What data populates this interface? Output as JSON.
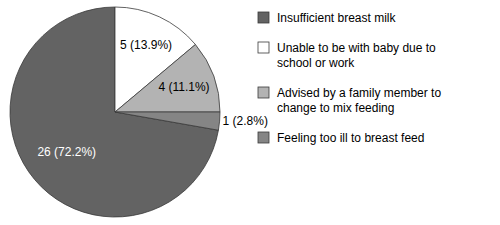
{
  "chart_data": {
    "type": "pie",
    "categories": [
      "Insufficient breast milk",
      "Unable to be with baby due to school or work",
      "Advised by a family member to change to mix feeding",
      "Feeling too ill to breast feed"
    ],
    "values": [
      26,
      5,
      4,
      1
    ],
    "value_labels": [
      "26 (72.2%)",
      "5 (13.9%)",
      "4 (11.1%)",
      "1 (2.8%)"
    ],
    "colors": [
      "#636363",
      "#ffffff",
      "#b3b3b3",
      "#858585"
    ],
    "data_labels": true,
    "legend": "right"
  }
}
